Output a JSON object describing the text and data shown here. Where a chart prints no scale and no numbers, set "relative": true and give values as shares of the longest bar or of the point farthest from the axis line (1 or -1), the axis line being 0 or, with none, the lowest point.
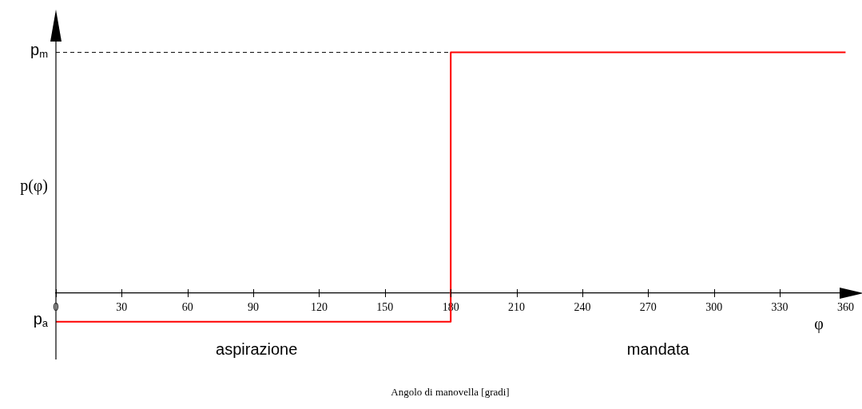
{
  "chart_data": {
    "type": "line",
    "relative": true,
    "ylabel": "p(φ)",
    "xlim": [
      0,
      366
    ],
    "xticks": [
      0,
      30,
      60,
      90,
      120,
      150,
      180,
      210,
      240,
      270,
      300,
      330,
      360
    ],
    "grid": false,
    "legend": false,
    "series": [
      {
        "color": "#ff0000",
        "x": [
          0,
          180,
          180,
          360
        ],
        "values": [
          -0.12,
          -0.12,
          1,
          1
        ],
        "line_style": "solid"
      },
      {
        "color": "#000000",
        "x": [
          0,
          180
        ],
        "values": [
          1,
          1
        ],
        "line_style": "dashed"
      }
    ],
    "annotations": [
      {
        "text": "p$_{m}$",
        "x": 0,
        "y": 1
      },
      {
        "text": "p$_{a}$",
        "x": 0,
        "y": -0.12
      },
      "aspirazione",
      "mandata",
      "φ",
      "Angolo di manovella [gradi]"
    ]
  }
}
